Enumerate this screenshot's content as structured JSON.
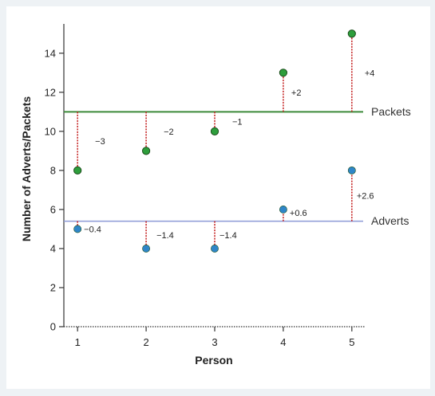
{
  "chart_data": {
    "type": "scatter",
    "xlabel": "Person",
    "ylabel": "Number of Adverts/Packets",
    "x": [
      1,
      2,
      3,
      4,
      5
    ],
    "xlim": [
      0.8,
      5.2
    ],
    "ylim": [
      0,
      15.5
    ],
    "yticks": [
      0,
      2,
      4,
      6,
      8,
      10,
      12,
      14
    ],
    "grid": false,
    "series": [
      {
        "name": "Packets",
        "color": "#3d8a3a",
        "point_color": "#2e9e3c",
        "values": [
          8,
          9,
          10,
          13,
          15
        ],
        "mean": 11,
        "deviations": [
          "−3",
          "−2",
          "−1",
          "+2",
          "+4"
        ]
      },
      {
        "name": "Adverts",
        "color": "#8d9ad6",
        "point_color": "#2f86c8",
        "values": [
          5,
          4,
          4,
          6,
          8
        ],
        "mean": 5.4,
        "deviations": [
          "−0.4",
          "−1.4",
          "−1.4",
          "+0.6",
          "+2.6"
        ]
      }
    ],
    "deviation_line_color": "#c62828"
  }
}
